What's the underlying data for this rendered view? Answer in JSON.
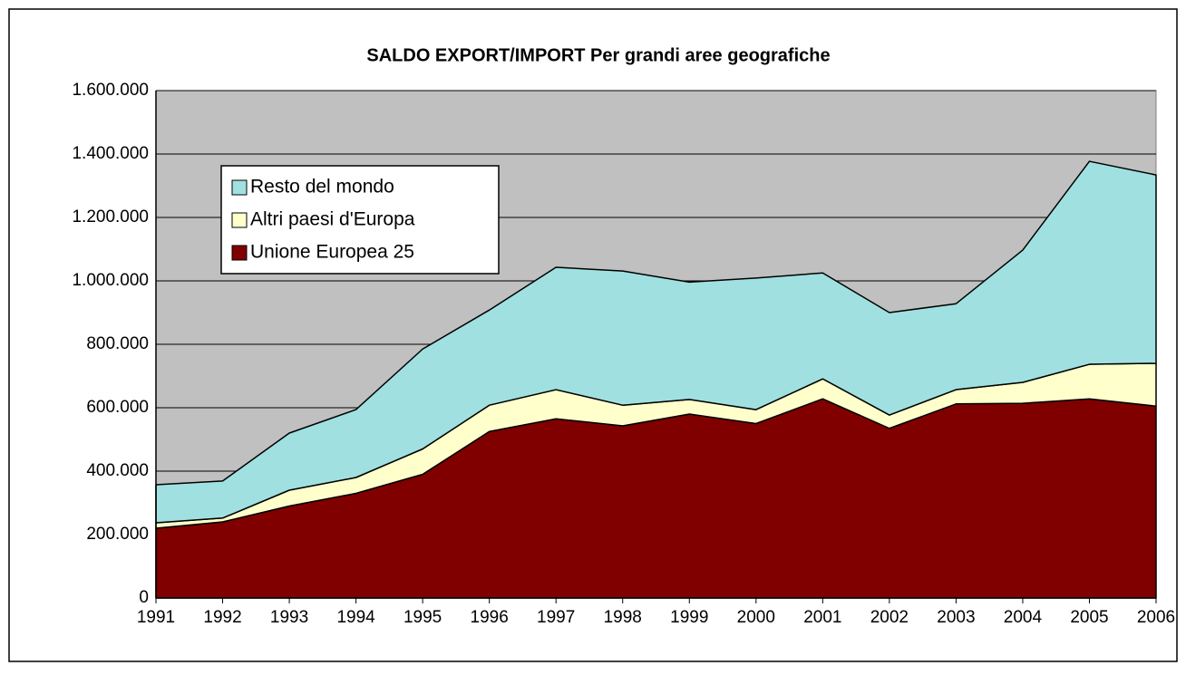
{
  "chart_data": {
    "type": "stacked_area",
    "title": "SALDO EXPORT/IMPORT Per grandi aree geografiche",
    "categories": [
      "1991",
      "1992",
      "1993",
      "1994",
      "1995",
      "1996",
      "1997",
      "1998",
      "1999",
      "2000",
      "2001",
      "2002",
      "2003",
      "2004",
      "2005",
      "2006"
    ],
    "series": [
      {
        "name": "Unione Europea 25",
        "color": "#800000",
        "values": [
          220000,
          240000,
          290000,
          330000,
          390000,
          525000,
          565000,
          543000,
          580000,
          550000,
          628000,
          535000,
          612000,
          614000,
          628000,
          605000
        ]
      },
      {
        "name": "Altri paesi d'Europa",
        "color": "#ffffcc",
        "values": [
          17000,
          12000,
          50000,
          50000,
          80000,
          83000,
          92000,
          65000,
          46000,
          44000,
          63000,
          42000,
          45000,
          66000,
          109000,
          135000
        ]
      },
      {
        "name": "Resto del mondo",
        "color": "#a0e0e0",
        "values": [
          120000,
          117000,
          180000,
          214000,
          315000,
          300000,
          386000,
          423000,
          370000,
          415000,
          334000,
          323000,
          271000,
          417000,
          640000,
          594000
        ]
      }
    ],
    "ylim": [
      0,
      1600000
    ],
    "yticks": [
      0,
      {
        "value": 200000,
        "label": "200.000"
      },
      {
        "value": 400000,
        "label": "400.000"
      },
      {
        "value": 600000,
        "label": "600.000"
      },
      {
        "value": 800000,
        "label": "800.000"
      },
      {
        "value": 1000000,
        "label": "1.000.000"
      },
      {
        "value": 1200000,
        "label": "1.200.000"
      },
      {
        "value": 1400000,
        "label": "1.400.000"
      },
      {
        "value": 1600000,
        "label": "1.600.000"
      }
    ],
    "grid": true,
    "legend": "upper left"
  }
}
